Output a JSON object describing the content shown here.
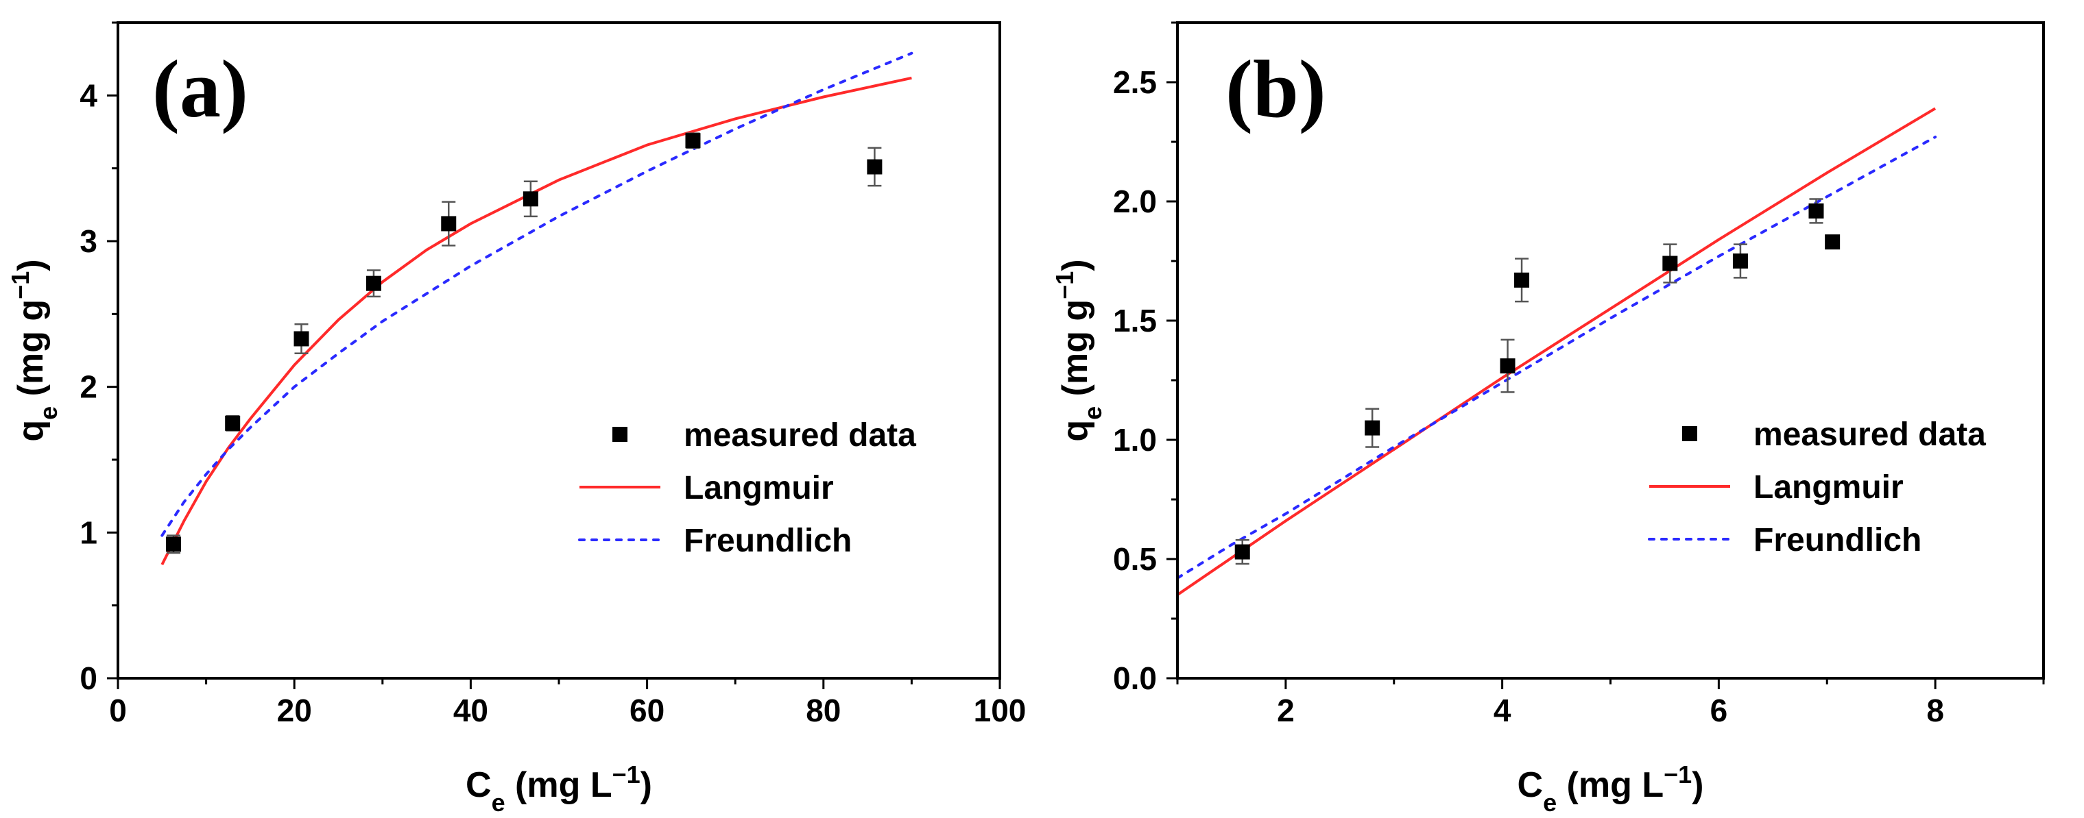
{
  "chart_data": [
    {
      "type": "scatter",
      "panel_label": "(a)",
      "xlabel": {
        "base": "C",
        "sub": "e",
        "unit": " (mg L",
        "sup": "−1",
        "close": ")"
      },
      "ylabel": {
        "base": "q",
        "sub": "e",
        "unit": " (mg g",
        "sup": "−1",
        "close": ")"
      },
      "xlim": [
        0,
        100
      ],
      "ylim": [
        0,
        4.5
      ],
      "xticks": [
        0,
        20,
        40,
        60,
        80,
        100
      ],
      "yticks": [
        0,
        1,
        2,
        3,
        4
      ],
      "xtick_labels": [
        "0",
        "20",
        "40",
        "60",
        "80",
        "100"
      ],
      "ytick_labels": [
        "0",
        "1",
        "2",
        "3",
        "4"
      ],
      "legend_position": "center-right",
      "legend": [
        "measured data",
        "Langmuir",
        "Freundlich"
      ],
      "series": [
        {
          "name": "measured data",
          "style": "marker",
          "color": "#000000",
          "x": [
            6.3,
            13.0,
            20.8,
            29.0,
            37.5,
            46.8,
            65.2,
            85.8
          ],
          "y": [
            0.92,
            1.75,
            2.33,
            2.71,
            3.12,
            3.29,
            3.69,
            3.51
          ],
          "err": [
            0.06,
            0.05,
            0.1,
            0.09,
            0.15,
            0.12,
            0.05,
            0.13
          ]
        },
        {
          "name": "Langmuir",
          "style": "solid",
          "color": "#ff2a2a",
          "x": [
            5,
            7.5,
            10,
            12.5,
            15,
            20,
            25,
            30,
            35,
            40,
            50,
            60,
            70,
            80,
            90
          ],
          "y": [
            0.78,
            1.08,
            1.35,
            1.58,
            1.78,
            2.15,
            2.46,
            2.72,
            2.94,
            3.12,
            3.42,
            3.66,
            3.84,
            3.99,
            4.12
          ]
        },
        {
          "name": "Freundlich",
          "style": "dotted",
          "color": "#2a2aff",
          "x": [
            5,
            7.5,
            10,
            12.5,
            15,
            20,
            25,
            30,
            40,
            50,
            60,
            70,
            80,
            90
          ],
          "y": [
            0.98,
            1.21,
            1.4,
            1.57,
            1.72,
            2.0,
            2.23,
            2.45,
            2.83,
            3.17,
            3.48,
            3.77,
            4.04,
            4.29
          ]
        }
      ]
    },
    {
      "type": "scatter",
      "panel_label": "(b)",
      "xlabel": {
        "base": "C",
        "sub": "e",
        "unit": " (mg L",
        "sup": "−1",
        "close": ")"
      },
      "ylabel": {
        "base": "q",
        "sub": "e",
        "unit": " (mg g",
        "sup": "−1",
        "close": ")"
      },
      "xlim": [
        1,
        9
      ],
      "ylim": [
        0,
        2.75
      ],
      "xticks": [
        2,
        4,
        6,
        8
      ],
      "yticks": [
        0,
        0.5,
        1.0,
        1.5,
        2.0,
        2.5
      ],
      "xtick_labels": [
        "2",
        "4",
        "6",
        "8"
      ],
      "ytick_labels": [
        "0.0",
        "0.5",
        "1.0",
        "1.5",
        "2.0",
        "2.5"
      ],
      "legend_position": "center-right",
      "legend": [
        "measured data",
        "Langmuir",
        "Freundlich"
      ],
      "series": [
        {
          "name": "measured data",
          "style": "marker",
          "color": "#000000",
          "x": [
            1.6,
            2.8,
            4.05,
            4.18,
            5.55,
            6.2,
            6.9,
            7.05
          ],
          "y": [
            0.53,
            1.05,
            1.31,
            1.67,
            1.74,
            1.75,
            1.96,
            1.83
          ],
          "err": [
            0.05,
            0.08,
            0.11,
            0.09,
            0.08,
            0.07,
            0.05,
            0.0
          ]
        },
        {
          "name": "Langmuir",
          "style": "solid",
          "color": "#ff2a2a",
          "x": [
            1.0,
            2.0,
            3.0,
            4.0,
            5.0,
            6.0,
            7.0,
            8.0
          ],
          "y": [
            0.35,
            0.66,
            0.96,
            1.26,
            1.55,
            1.84,
            2.12,
            2.39
          ]
        },
        {
          "name": "Freundlich",
          "style": "dotted",
          "color": "#2a2aff",
          "x": [
            1.0,
            1.5,
            2.0,
            3.0,
            4.0,
            5.0,
            6.0,
            7.0,
            8.0
          ],
          "y": [
            0.42,
            0.56,
            0.69,
            0.97,
            1.24,
            1.51,
            1.77,
            2.02,
            2.27
          ]
        }
      ]
    }
  ]
}
